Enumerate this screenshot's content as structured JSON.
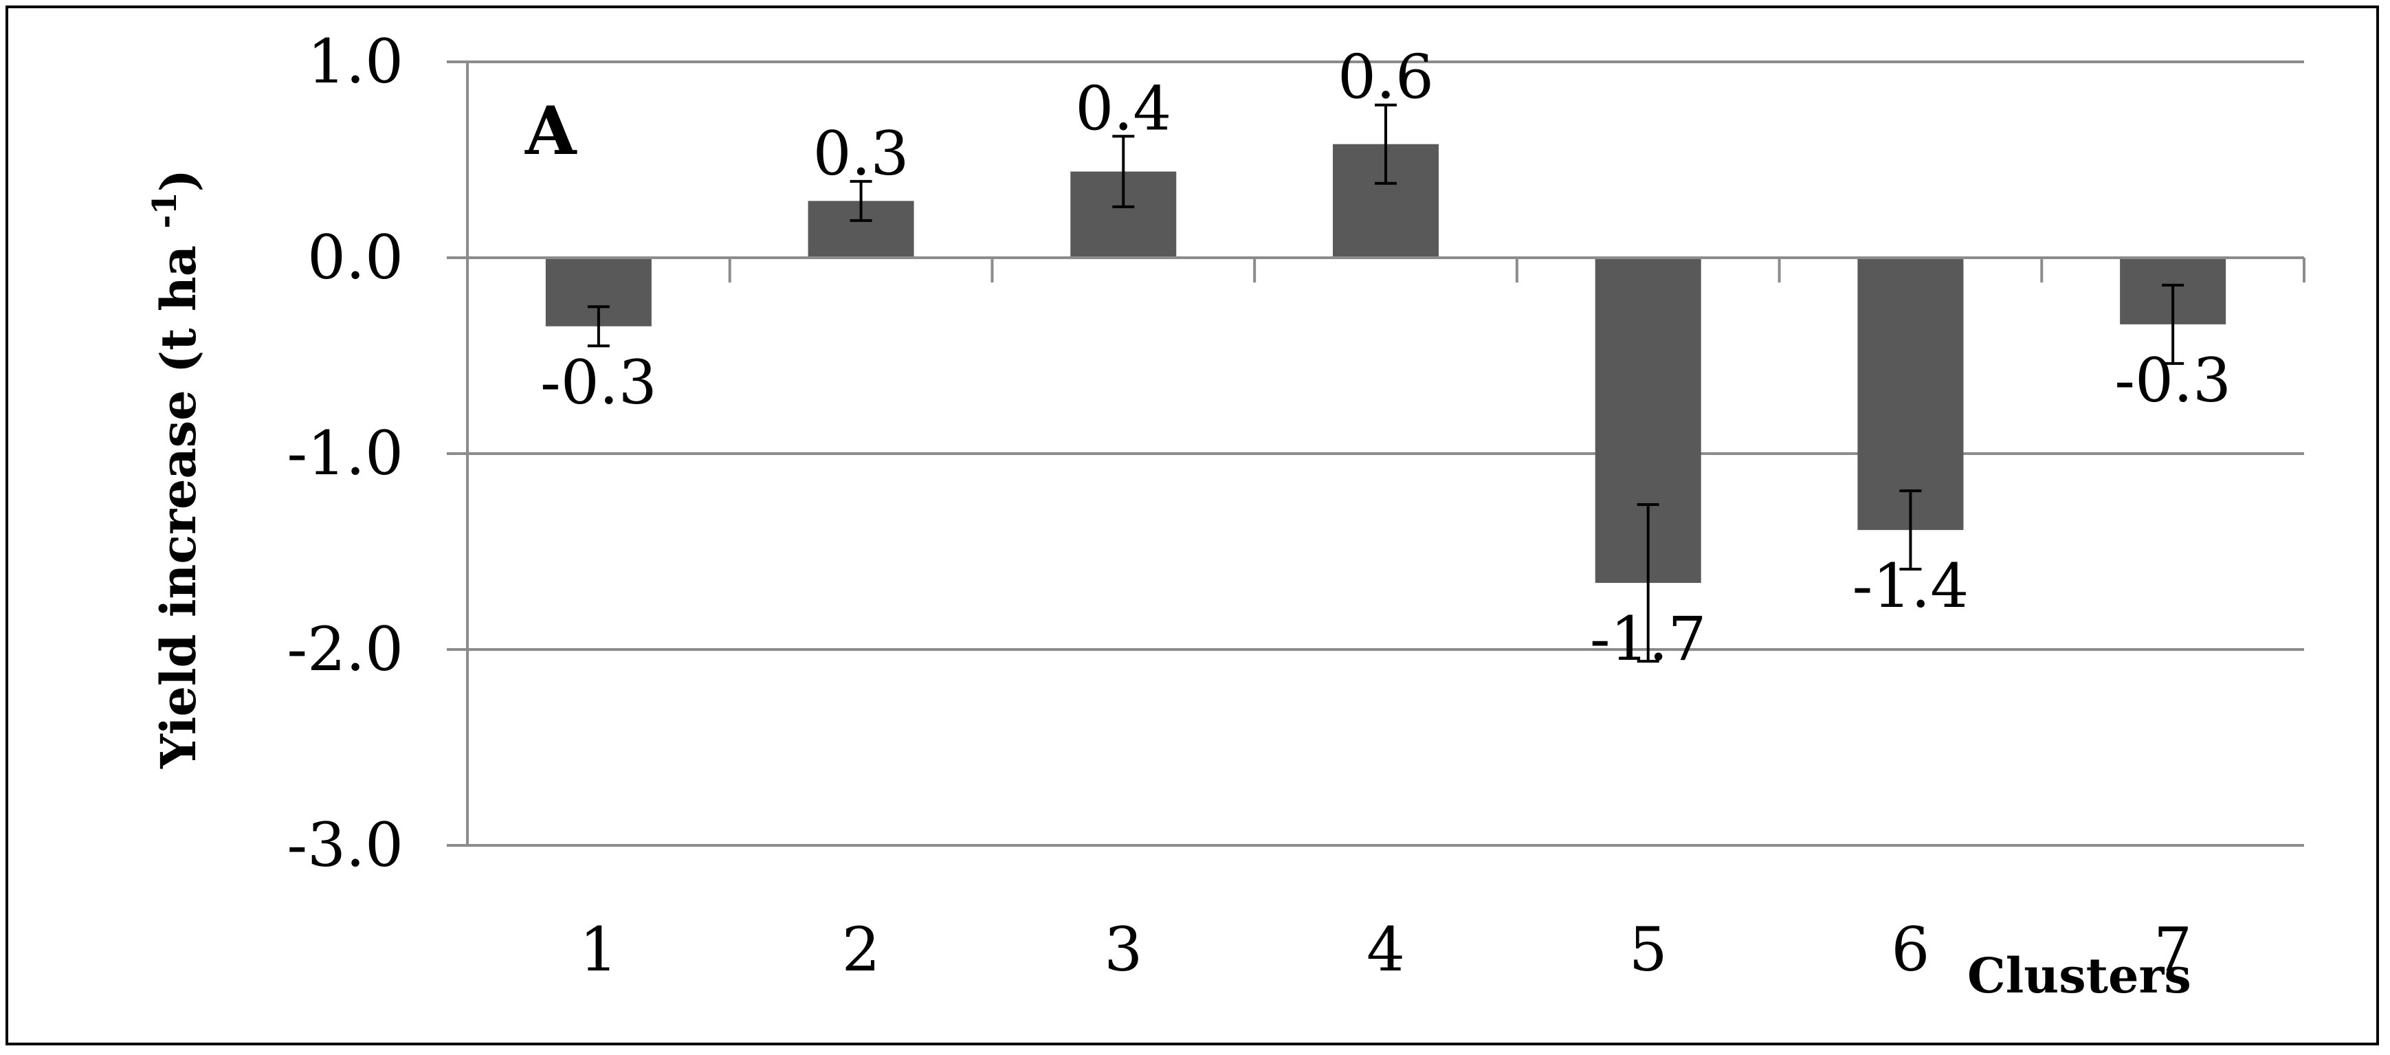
{
  "chart_data": {
    "type": "bar",
    "panel_label": "A",
    "title": "",
    "xlabel": "Clusters",
    "ylabel": "Yield increase (t  ha ",
    "ylabel_superscript": "-1",
    "ylabel_close": ")",
    "categories": [
      "1",
      "2",
      "3",
      "4",
      "5",
      "6",
      "7"
    ],
    "values": [
      -0.35,
      0.29,
      0.44,
      0.58,
      -1.66,
      -1.39,
      -0.34
    ],
    "error": [
      0.1,
      0.1,
      0.18,
      0.2,
      0.4,
      0.2,
      0.2
    ],
    "data_labels": [
      "-0.3",
      "0.3",
      "0.4",
      "0.6",
      "-1.7",
      "-1.4",
      "-0.3"
    ],
    "y_ticks": [
      1.0,
      0.0,
      -1.0,
      -2.0,
      -3.0
    ],
    "y_tick_labels": [
      "1.0",
      "0.0",
      "-1.0",
      "-2.0",
      "-3.0"
    ],
    "ylim": [
      -3.0,
      1.0
    ],
    "grid": true,
    "legend": "none",
    "colors": {
      "bar": "#595959",
      "grid": "#8c8c8c",
      "text": "#000000",
      "error_bar": "#000000"
    }
  }
}
